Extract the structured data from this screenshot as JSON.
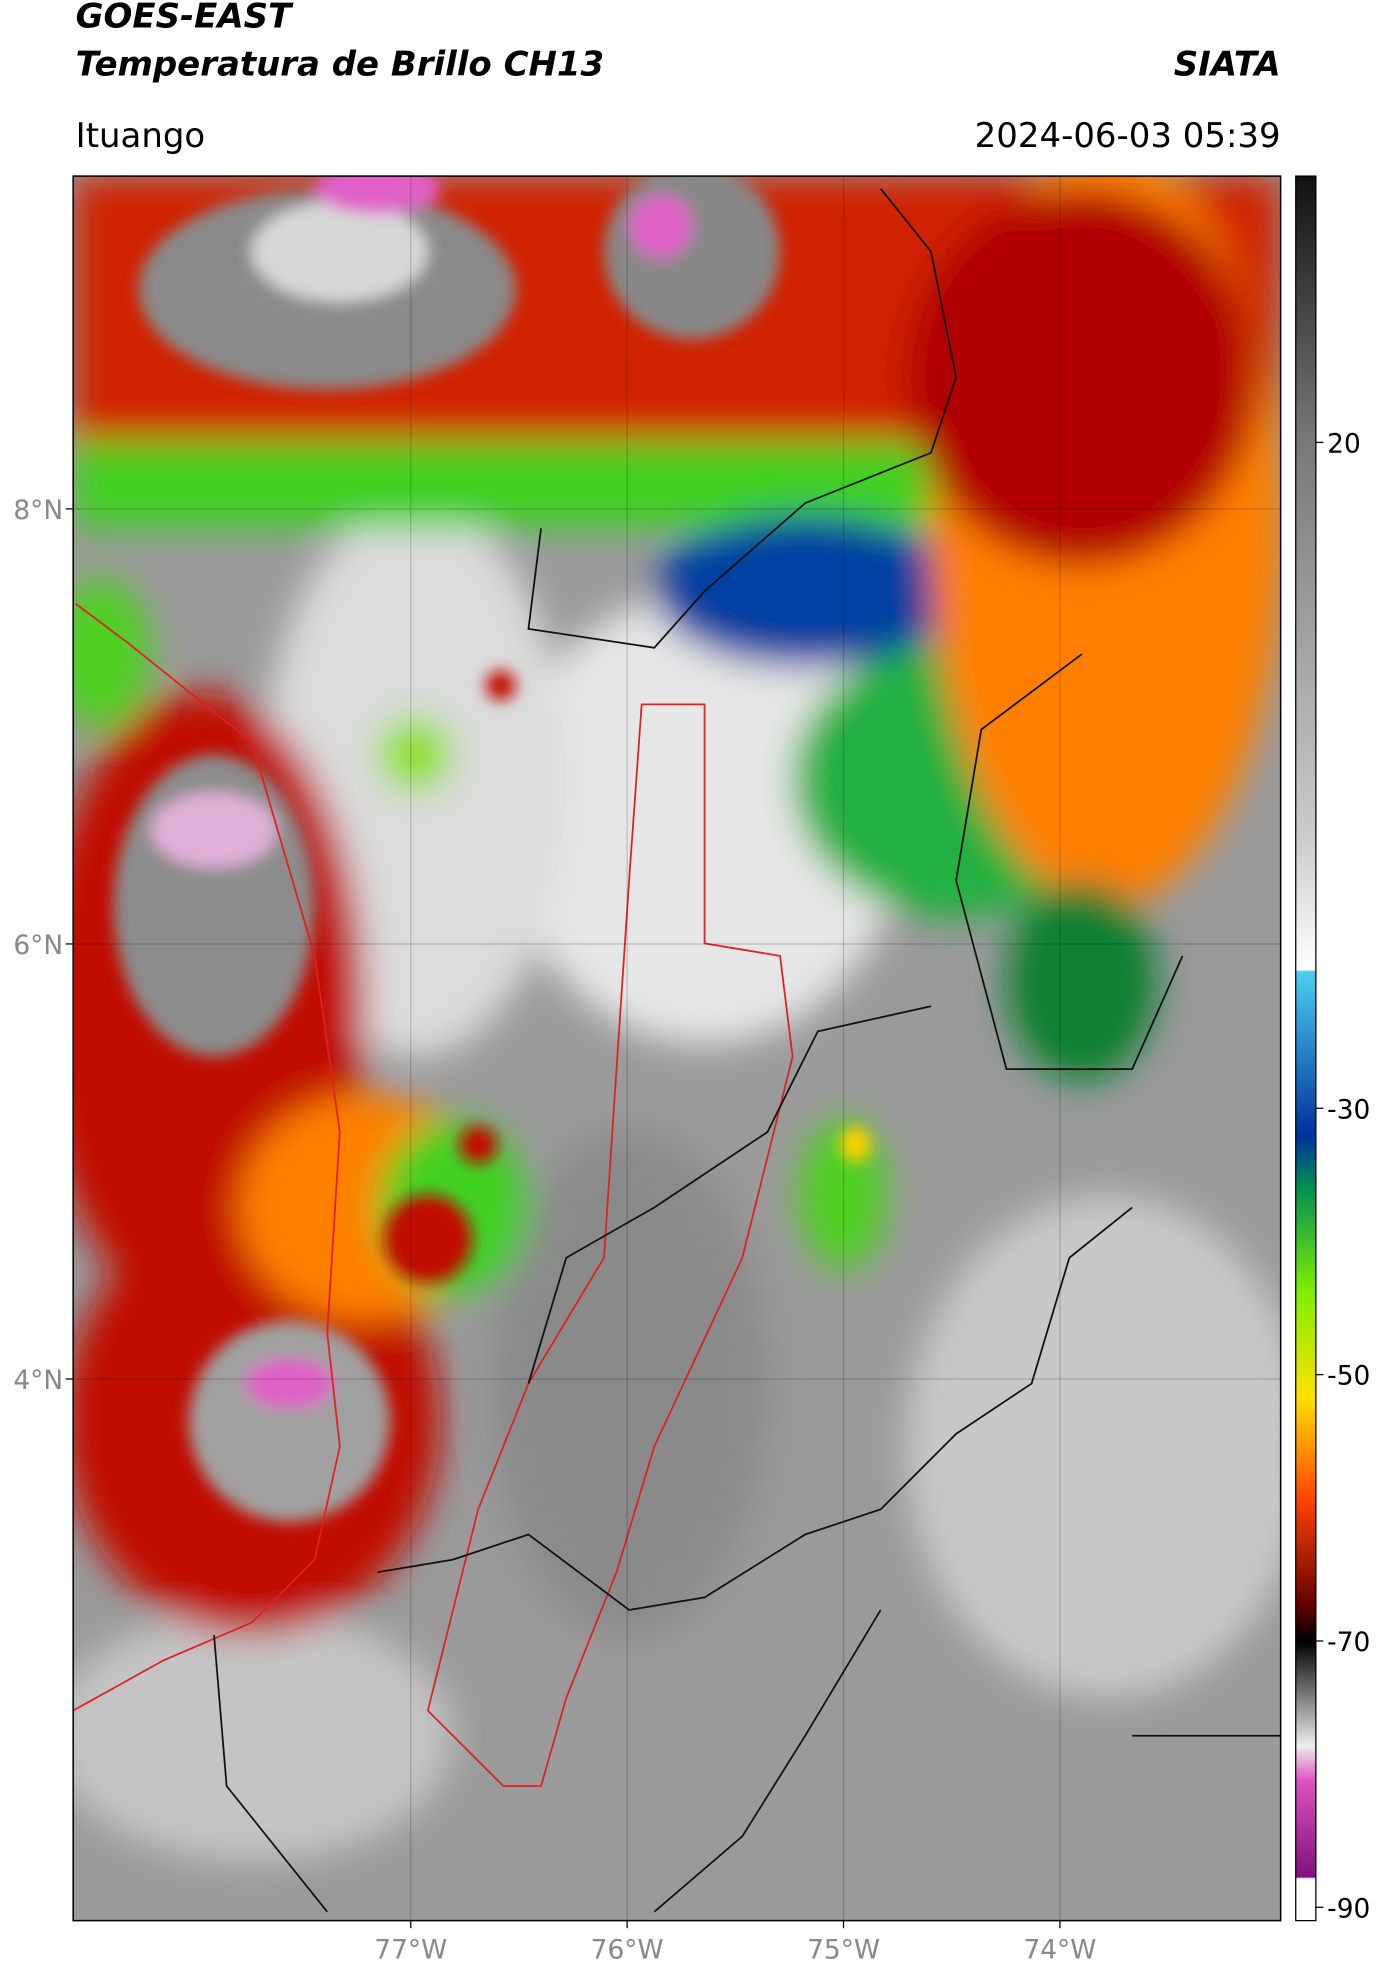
{
  "header": {
    "title": "GOES-EAST",
    "subtitle": "Temperatura de Brillo CH13",
    "org": "SIATA",
    "place": "Ituango",
    "datetime": "2024-06-03 05:39"
  },
  "map": {
    "latlim": [
      1.51,
      9.53
    ],
    "lonlim": [
      -78.56,
      -72.98
    ],
    "lat_ticks": [
      {
        "value": 4,
        "label": "4°N"
      },
      {
        "value": 6,
        "label": "6°N"
      },
      {
        "value": 8,
        "label": "8°N"
      }
    ],
    "lon_ticks": [
      {
        "value": -77,
        "label": "77°W"
      },
      {
        "value": -76,
        "label": "76°W"
      },
      {
        "value": -75,
        "label": "75°W"
      },
      {
        "value": -74,
        "label": "74°W"
      }
    ]
  },
  "colorbar": {
    "clim": [
      -91,
      40
    ],
    "ticks": [
      20,
      -30,
      -50,
      -70,
      -90
    ]
  }
}
